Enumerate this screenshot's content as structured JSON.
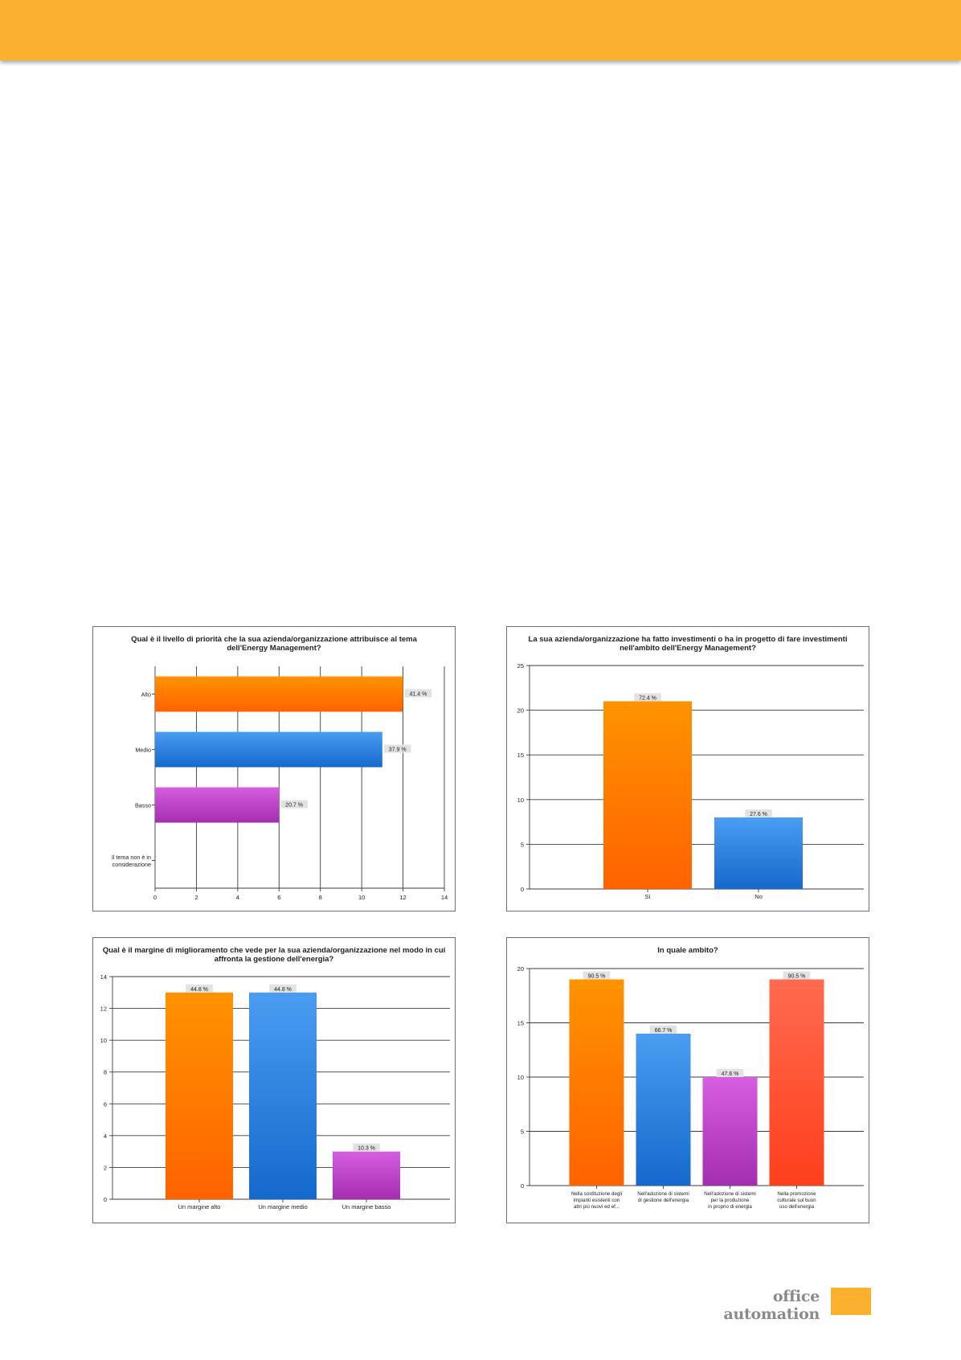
{
  "footer": {
    "brand": "office automation"
  },
  "colors": {
    "orange": [
      "#ff9300",
      "#ff6200"
    ],
    "blue": [
      "#4a9df0",
      "#1569cc"
    ],
    "purple": [
      "#d65ee0",
      "#a42eb0"
    ],
    "red": [
      "#ff6b4f",
      "#ff3f1c"
    ],
    "band": "#fbb12e"
  },
  "chart_data": [
    {
      "type": "bar",
      "orientation": "horizontal",
      "title": [
        "Qual è il livello di priorità che la sua azienda/organizzazione attribuisce al tema",
        "dell'Energy Management?"
      ],
      "categories": [
        [
          "Alto"
        ],
        [
          "Medio"
        ],
        [
          "Basso"
        ],
        [
          "Il tema non è in",
          "considerazione"
        ]
      ],
      "values": [
        12,
        11,
        6,
        0
      ],
      "labels": [
        "41.4 %",
        "37.9 %",
        "20.7 %",
        null
      ],
      "colors": [
        "orange",
        "blue",
        "purple",
        null
      ],
      "xlim": [
        0,
        14
      ],
      "ticks": [
        0,
        2,
        4,
        6,
        8,
        10,
        12,
        14
      ],
      "grid": true
    },
    {
      "type": "bar",
      "title": [
        "La sua azienda/organizzazione ha fatto investimenti o ha in progetto di fare investimenti",
        "nell'ambito dell'Energy Management?"
      ],
      "categories": [
        [
          "Sì"
        ],
        [
          "No"
        ]
      ],
      "values": [
        21,
        8
      ],
      "labels": [
        "72.4 %",
        "27.6 %"
      ],
      "colors": [
        "orange",
        "blue"
      ],
      "ylim": [
        0,
        25
      ],
      "ticks": [
        0,
        5,
        10,
        15,
        20,
        25
      ],
      "grid": true
    },
    {
      "type": "bar",
      "title": [
        "Qual è il margine di miglioramento che vede per la sua azienda/organizzazione nel modo in cui",
        "affronta la gestione dell'energia?"
      ],
      "categories": [
        [
          "Un margine alto"
        ],
        [
          "Un margine medio"
        ],
        [
          "Un margine basso"
        ]
      ],
      "values": [
        13,
        13,
        3
      ],
      "labels": [
        "44.8 %",
        "44.8 %",
        "10.3 %"
      ],
      "colors": [
        "orange",
        "blue",
        "purple"
      ],
      "ylim": [
        0,
        14
      ],
      "ticks": [
        0,
        2,
        4,
        6,
        8,
        10,
        12,
        14
      ],
      "grid": true
    },
    {
      "type": "bar",
      "title": [
        "In quale ambito?"
      ],
      "categories": [
        [
          "Nella sostituzione degli",
          "impianti esistenti con",
          "altri più nuovi ed ef..."
        ],
        [
          "Nell'adozione di sistemi",
          "di gestione dell'energia"
        ],
        [
          "Nell'adozione di sistemi",
          "per la produzione",
          "in proprio di energia"
        ],
        [
          "Nella promozione",
          "culturale sul buon",
          "uso dell'energia"
        ]
      ],
      "values": [
        19,
        14,
        10,
        19
      ],
      "labels": [
        "90.5 %",
        "66.7 %",
        "47.6 %",
        "90.5 %"
      ],
      "colors": [
        "orange",
        "blue",
        "purple",
        "red"
      ],
      "ylim": [
        0,
        20
      ],
      "ticks": [
        0,
        5,
        10,
        15,
        20
      ],
      "grid": true
    }
  ]
}
